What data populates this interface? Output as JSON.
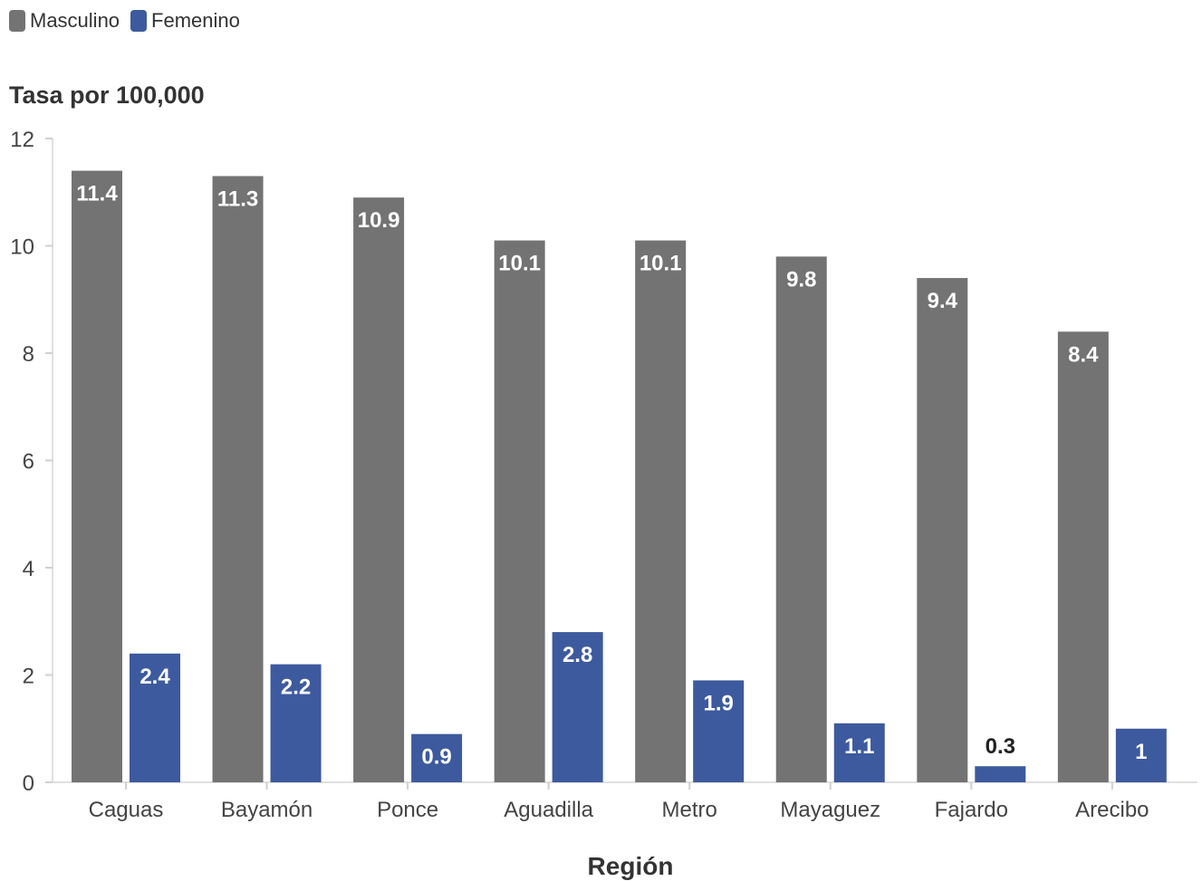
{
  "legend": {
    "items": [
      {
        "label": "Masculino",
        "color": "#737373"
      },
      {
        "label": "Femenino",
        "color": "#3d5a9e"
      }
    ]
  },
  "chart_data": {
    "type": "bar",
    "title": "",
    "ylabel": "Tasa por 100,000",
    "xlabel": "Región",
    "categories": [
      "Caguas",
      "Bayamón",
      "Ponce",
      "Aguadilla",
      "Metro",
      "Mayaguez",
      "Fajardo",
      "Arecibo"
    ],
    "series": [
      {
        "name": "Masculino",
        "color": "#737373",
        "values": [
          11.4,
          11.3,
          10.9,
          10.1,
          10.1,
          9.8,
          9.4,
          8.4
        ]
      },
      {
        "name": "Femenino",
        "color": "#3d5a9e",
        "values": [
          2.4,
          2.2,
          0.9,
          2.8,
          1.9,
          1.1,
          0.3,
          1
        ]
      }
    ],
    "ylim": [
      0,
      12
    ],
    "yticks": [
      0,
      2,
      4,
      6,
      8,
      10,
      12
    ],
    "grid": false,
    "legend_position": "top-left"
  }
}
